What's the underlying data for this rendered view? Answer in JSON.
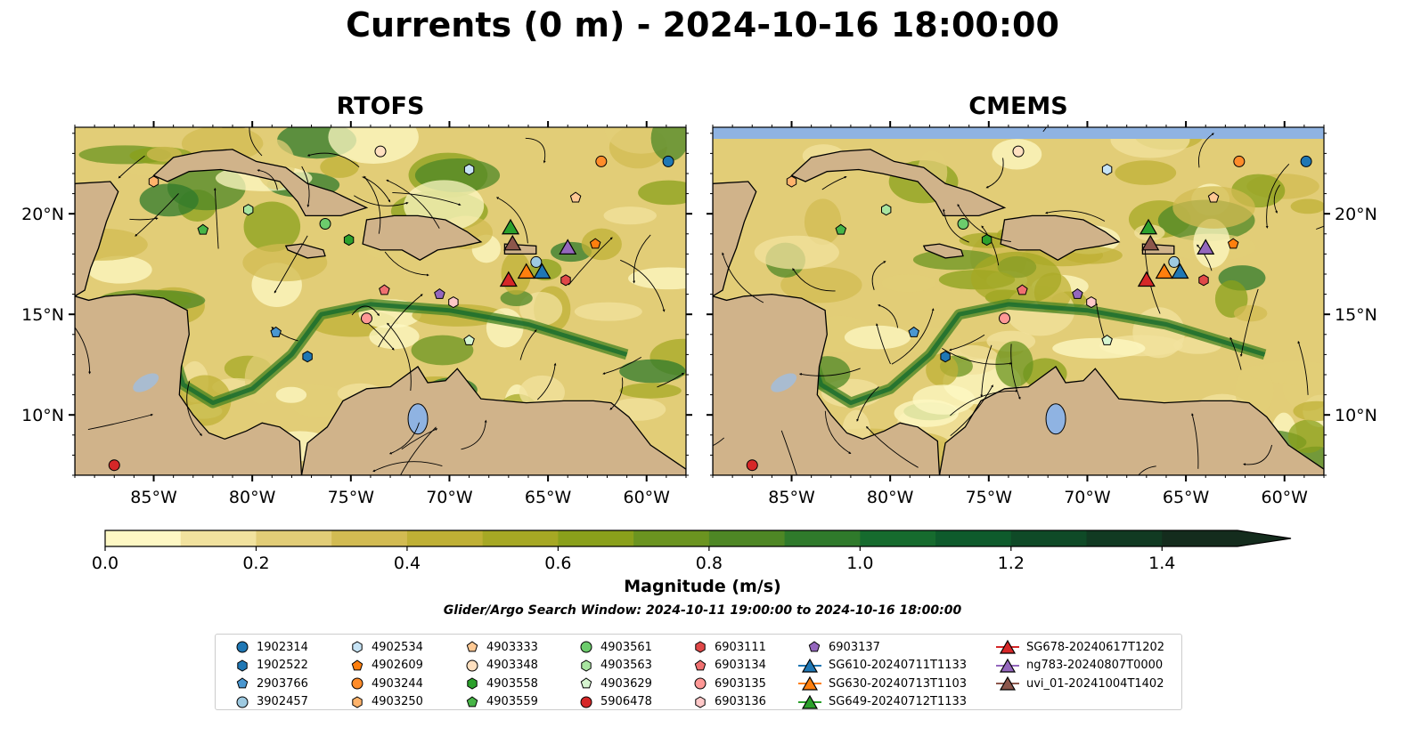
{
  "title": "Currents (0 m) - 2024-10-16 18:00:00",
  "panels": [
    {
      "title": "RTOFS"
    },
    {
      "title": "CMEMS"
    }
  ],
  "axes": {
    "lon_ticks": [
      "85°W",
      "80°W",
      "75°W",
      "70°W",
      "65°W",
      "60°W"
    ],
    "lon_values": [
      -85,
      -80,
      -75,
      -70,
      -65,
      -60
    ],
    "lat_ticks": [
      "10°N",
      "15°N",
      "20°N"
    ],
    "lat_values": [
      10,
      15,
      20
    ],
    "lon_range": [
      -89,
      -58
    ],
    "lat_range": [
      7,
      24.3
    ]
  },
  "colorbar": {
    "label": "Magnitude (m/s)",
    "ticks": [
      "0.0",
      "0.2",
      "0.4",
      "0.6",
      "0.8",
      "1.0",
      "1.2",
      "1.4"
    ],
    "tick_values": [
      0,
      0.2,
      0.4,
      0.6,
      0.8,
      1.0,
      1.2,
      1.4
    ],
    "range": [
      0,
      1.5
    ],
    "extend": "max",
    "colors": [
      "#fef8c4",
      "#f1e29e",
      "#e2cd77",
      "#d2bb52",
      "#bfb035",
      "#a6a824",
      "#8aa01b",
      "#6b9420",
      "#4e8725",
      "#2f7a2b",
      "#166b2e",
      "#0e5b2c",
      "#0f4a27",
      "#113a22",
      "#142c1d"
    ]
  },
  "search_window": "Glider/Argo Search Window: 2024-10-11 19:00:00 to 2024-10-16 18:00:00",
  "legend": [
    {
      "label": "1902314",
      "marker": "circle",
      "color": "#1f77b4"
    },
    {
      "label": "1902522",
      "marker": "hexagon",
      "color": "#1f77b4"
    },
    {
      "label": "2903766",
      "marker": "pentagon",
      "color": "#4a97d0"
    },
    {
      "label": "3902457",
      "marker": "circle",
      "color": "#9ecae1"
    },
    {
      "label": "4902534",
      "marker": "hexagon",
      "color": "#c6e3f5"
    },
    {
      "label": "4902609",
      "marker": "pentagon",
      "color": "#ff7f0e"
    },
    {
      "label": "4903244",
      "marker": "circle",
      "color": "#ff8c2a"
    },
    {
      "label": "4903250",
      "marker": "hexagon",
      "color": "#ffb36b"
    },
    {
      "label": "4903333",
      "marker": "pentagon",
      "color": "#ffc994"
    },
    {
      "label": "4903348",
      "marker": "circle",
      "color": "#ffe0c0"
    },
    {
      "label": "4903558",
      "marker": "hexagon",
      "color": "#2ca02c"
    },
    {
      "label": "4903559",
      "marker": "pentagon",
      "color": "#47b547"
    },
    {
      "label": "4903561",
      "marker": "circle",
      "color": "#6ccc6c"
    },
    {
      "label": "4903563",
      "marker": "hexagon",
      "color": "#a8e4a0"
    },
    {
      "label": "4903629",
      "marker": "pentagon",
      "color": "#d6f5d0"
    },
    {
      "label": "5906478",
      "marker": "circle",
      "color": "#d62728"
    },
    {
      "label": "6903111",
      "marker": "hexagon",
      "color": "#e04848"
    },
    {
      "label": "6903134",
      "marker": "pentagon",
      "color": "#f07070"
    },
    {
      "label": "6903135",
      "marker": "circle",
      "color": "#ff9896"
    },
    {
      "label": "6903136",
      "marker": "hexagon",
      "color": "#ffc8c8"
    },
    {
      "label": "6903137",
      "marker": "pentagon",
      "color": "#9467bd"
    },
    {
      "label": "SG610-20240711T1133",
      "marker": "triangle-line",
      "color": "#1f77b4"
    },
    {
      "label": "SG630-20240713T1103",
      "marker": "triangle-line",
      "color": "#ff7f0e"
    },
    {
      "label": "SG649-20240712T1133",
      "marker": "triangle-line",
      "color": "#2ca02c"
    },
    {
      "label": "SG678-20240617T1202",
      "marker": "triangle-line",
      "color": "#d62728"
    },
    {
      "label": "ng783-20240807T0000",
      "marker": "triangle-line",
      "color": "#9467bd"
    },
    {
      "label": "uvi_01-20241004T1402",
      "marker": "triangle-line",
      "color": "#8c564b"
    }
  ],
  "floats": [
    {
      "id": "1902314",
      "lon": -58.9,
      "lat": 22.6
    },
    {
      "id": "1902522",
      "lon": -77.2,
      "lat": 12.9
    },
    {
      "id": "2903766",
      "lon": -78.8,
      "lat": 14.1
    },
    {
      "id": "3902457",
      "lon": -65.6,
      "lat": 17.6
    },
    {
      "id": "4902534",
      "lon": -69.0,
      "lat": 22.2
    },
    {
      "id": "4902609",
      "lon": -62.6,
      "lat": 18.5
    },
    {
      "id": "4903244",
      "lon": -62.3,
      "lat": 22.6
    },
    {
      "id": "4903250",
      "lon": -85.0,
      "lat": 21.6
    },
    {
      "id": "4903333",
      "lon": -63.6,
      "lat": 20.8
    },
    {
      "id": "4903348",
      "lon": -73.5,
      "lat": 23.1
    },
    {
      "id": "4903558",
      "lon": -75.1,
      "lat": 18.7
    },
    {
      "id": "4903559",
      "lon": -82.5,
      "lat": 19.2
    },
    {
      "id": "4903561",
      "lon": -76.3,
      "lat": 19.5
    },
    {
      "id": "4903563",
      "lon": -80.2,
      "lat": 20.2
    },
    {
      "id": "4903629",
      "lon": -69.0,
      "lat": 13.7
    },
    {
      "id": "5906478",
      "lon": -87.0,
      "lat": 7.5
    },
    {
      "id": "6903111",
      "lon": -64.1,
      "lat": 16.7
    },
    {
      "id": "6903134",
      "lon": -73.3,
      "lat": 16.2
    },
    {
      "id": "6903135",
      "lon": -74.2,
      "lat": 14.8
    },
    {
      "id": "6903136",
      "lon": -69.8,
      "lat": 15.6
    },
    {
      "id": "6903137",
      "lon": -70.5,
      "lat": 16.0
    },
    {
      "id": "SG610-20240711T1133",
      "lon": -65.3,
      "lat": 17.1
    },
    {
      "id": "SG630-20240713T1103",
      "lon": -66.1,
      "lat": 17.1
    },
    {
      "id": "SG649-20240712T1133",
      "lon": -66.9,
      "lat": 19.3
    },
    {
      "id": "SG678-20240617T1202",
      "lon": -67.0,
      "lat": 16.7
    },
    {
      "id": "ng783-20240807T0000",
      "lon": -64.0,
      "lat": 18.3
    },
    {
      "id": "uvi_01-20241004T1402",
      "lon": -66.8,
      "lat": 18.5
    }
  ]
}
